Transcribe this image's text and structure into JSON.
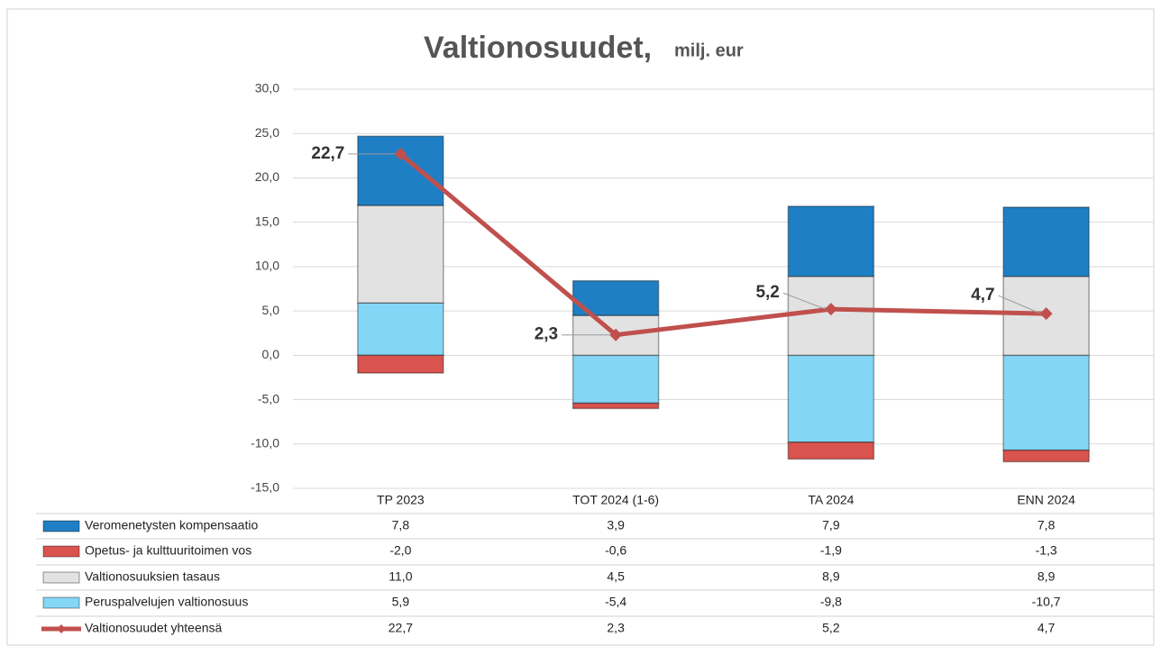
{
  "chart_data": {
    "type": "bar",
    "stacked": true,
    "title": "Valtionosuudet,",
    "subtitle": "milj. eur",
    "categories": [
      "TP 2023",
      "TOT 2024 (1-6)",
      "TA 2024",
      "ENN 2024"
    ],
    "ylim": [
      -15,
      30
    ],
    "yticks": [
      {
        "value": -15,
        "label": "-15,0"
      },
      {
        "value": -10,
        "label": "-10,0"
      },
      {
        "value": -5,
        "label": "-5,0"
      },
      {
        "value": 0,
        "label": "0,0"
      },
      {
        "value": 5,
        "label": "5,0"
      },
      {
        "value": 10,
        "label": "10,0"
      },
      {
        "value": 15,
        "label": "15,0"
      },
      {
        "value": 20,
        "label": "20,0"
      },
      {
        "value": 25,
        "label": "25,0"
      },
      {
        "value": 30,
        "label": "30,0"
      }
    ],
    "grid": true,
    "series": [
      {
        "name": "Veromenetysten kompensaatio",
        "color": "#1f7fc4",
        "values": [
          7.8,
          3.9,
          7.9,
          7.8
        ],
        "value_labels": [
          "7,8",
          "3,9",
          "7,9",
          "7,8"
        ]
      },
      {
        "name": "Opetus- ja kulttuuritoimen vos",
        "color": "#d9534f",
        "values": [
          -2.0,
          -0.6,
          -1.9,
          -1.3
        ],
        "value_labels": [
          "-2,0",
          "-0,6",
          "-1,9",
          "-1,3"
        ]
      },
      {
        "name": "Valtionosuuksien tasaus",
        "color": "#e2e2e2",
        "values": [
          11.0,
          4.5,
          8.9,
          8.9
        ],
        "value_labels": [
          "11,0",
          "4,5",
          "8,9",
          "8,9"
        ]
      },
      {
        "name": "Peruspalvelujen valtionosuus",
        "color": "#84d6f6",
        "values": [
          5.9,
          -5.4,
          -9.8,
          -10.7
        ],
        "value_labels": [
          "5,9",
          "-5,4",
          "-9,8",
          "-10,7"
        ]
      },
      {
        "name": "Valtionosuudet yhteensä",
        "type": "line",
        "color": "#c0504d",
        "values": [
          22.7,
          2.3,
          5.2,
          4.7
        ],
        "value_labels": [
          "22,7",
          "2,3",
          "5,2",
          "4,7"
        ]
      }
    ]
  }
}
